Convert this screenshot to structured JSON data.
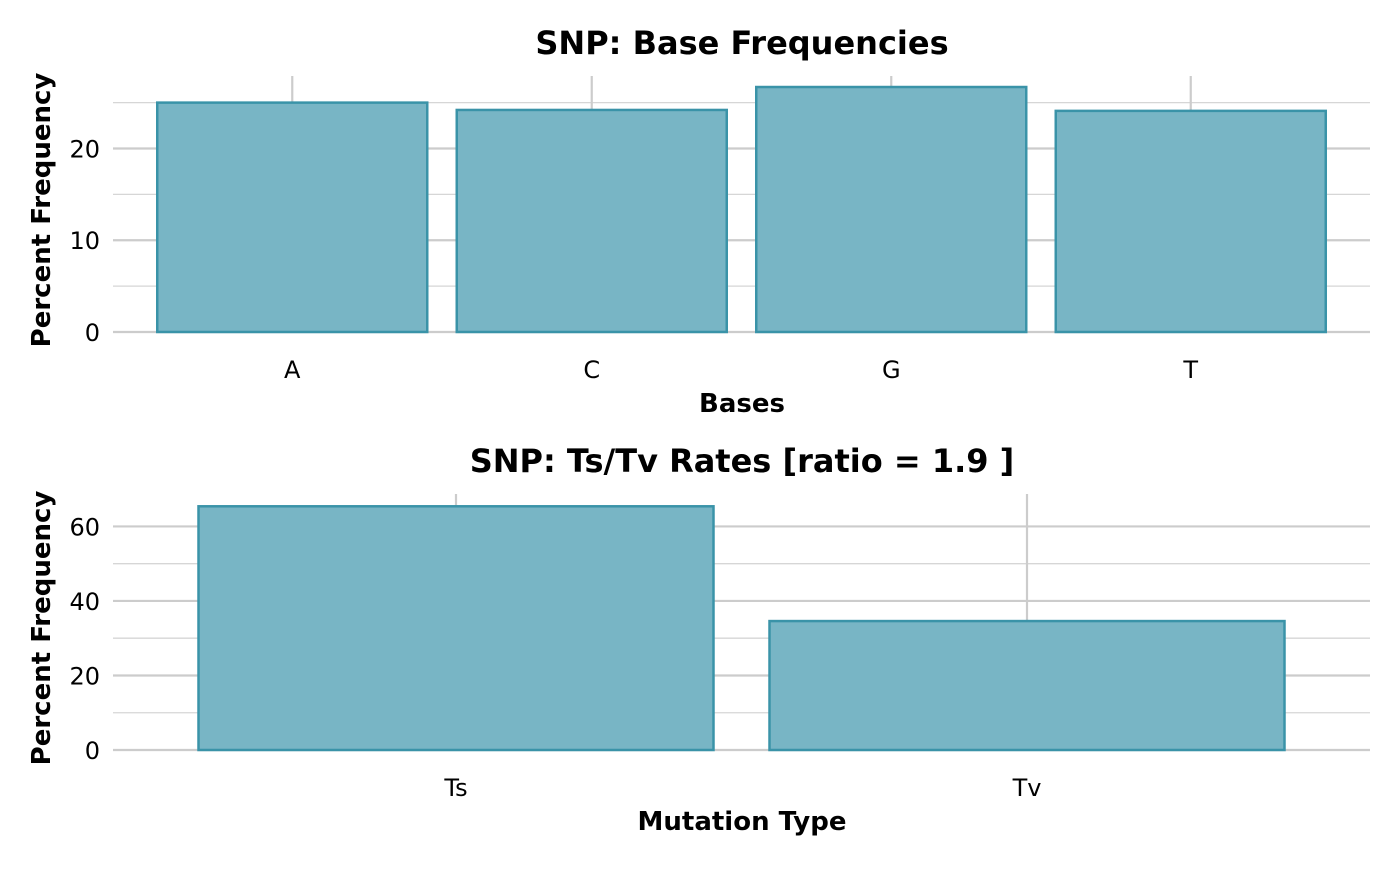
{
  "style": {
    "bar_fill": "#78b5c5",
    "bar_stroke": "#3a93a8",
    "grid_color": "#cccccc",
    "background": "#ffffff"
  },
  "chart_data": [
    {
      "type": "bar",
      "title": "SNP: Base Frequencies",
      "xlabel": "Bases",
      "ylabel": "Percent Frequency",
      "categories": [
        "A",
        "C",
        "G",
        "T"
      ],
      "values": [
        25.0,
        24.2,
        26.7,
        24.1
      ],
      "ylim": [
        0,
        27.9
      ],
      "yticks": [
        0,
        10,
        20
      ],
      "grid": true,
      "legend": "none"
    },
    {
      "type": "bar",
      "title": "SNP: Ts/Tv Rates [ratio = 1.9 ]",
      "xlabel": "Mutation Type",
      "ylabel": "Percent Frequency",
      "categories": [
        "Ts",
        "Tv"
      ],
      "values": [
        65.4,
        34.6
      ],
      "ylim": [
        0,
        68.7
      ],
      "yticks": [
        0,
        20,
        40,
        60
      ],
      "grid": true,
      "legend": "none"
    }
  ]
}
